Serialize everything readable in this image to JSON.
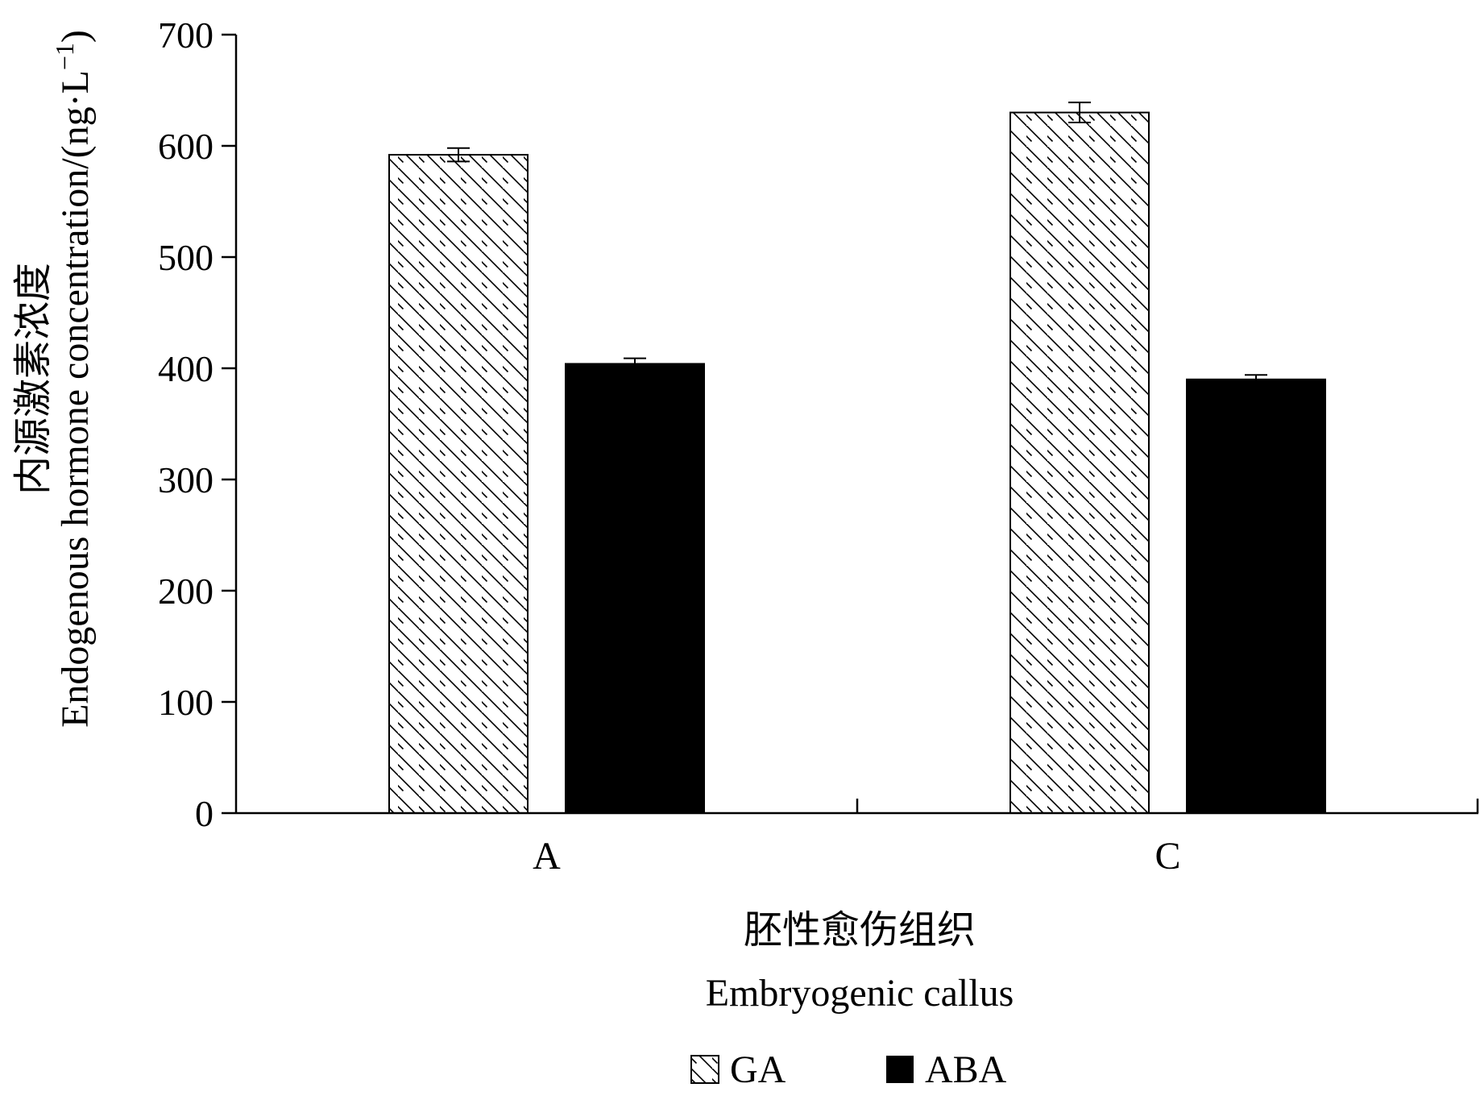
{
  "chart_data": {
    "type": "bar",
    "categories": [
      "A",
      "C"
    ],
    "series": [
      {
        "name": "GA",
        "values": [
          592,
          630
        ],
        "errors": [
          6,
          9
        ],
        "fill": "hatch"
      },
      {
        "name": "ABA",
        "values": [
          404,
          390
        ],
        "errors": [
          5,
          4
        ],
        "fill": "#000000"
      }
    ],
    "xlabel_cn": "胚性愈伤组织",
    "xlabel_en": "Embryogenic callus",
    "ylabel_cn": "内源激素浓度",
    "ylabel_en": "Endogenous hormone concentration/(ng·L",
    "ylabel_sup": "−1",
    "ylabel_close": ")",
    "ylim": [
      0,
      700
    ],
    "yticks": [
      0,
      100,
      200,
      300,
      400,
      500,
      600,
      700
    ],
    "grid": false,
    "legend_position": "bottom-center",
    "colors": {
      "axis": "#000000",
      "hatch_stroke": "#000000",
      "aba_fill": "#000000",
      "ga_fill": "#ffffff"
    }
  }
}
